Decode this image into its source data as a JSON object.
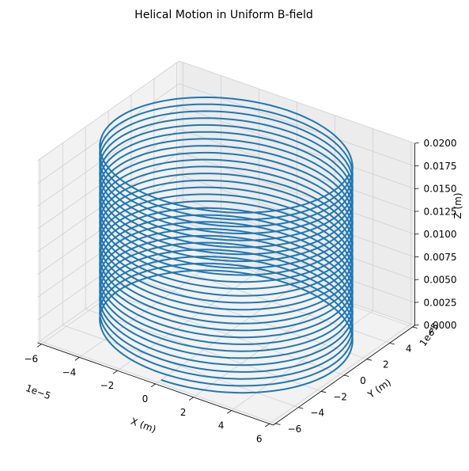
{
  "chart_data": {
    "type": "line",
    "projection": "3d",
    "title": "Helical Motion in Uniform B-field",
    "xlabel": "X (m)",
    "ylabel": "Y (m)",
    "zlabel": "Z (m)",
    "x_offset_label": "1e−5",
    "y_offset_label": "1e−5",
    "xlim": [
      -6.2,
      6.2
    ],
    "ylim": [
      -6.2,
      6.2
    ],
    "zlim": [
      0,
      0.02
    ],
    "x_ticks": [
      "−6",
      "−4",
      "−2",
      "0",
      "2",
      "4",
      "6"
    ],
    "y_ticks": [
      "−6",
      "−4",
      "−2",
      "0",
      "2",
      "4",
      "6"
    ],
    "z_ticks": [
      "0.0000",
      "0.0025",
      "0.0050",
      "0.0075",
      "0.0100",
      "0.0125",
      "0.0150",
      "0.0175",
      "0.0200"
    ],
    "grid": true,
    "series": [
      {
        "color": "#1f77b4",
        "radius_e5": 5.7,
        "center_e5": [
          0,
          0
        ],
        "z_start": 0,
        "z_end": 0.02,
        "turns": 26.3,
        "start_angle_deg": 270
      }
    ]
  }
}
